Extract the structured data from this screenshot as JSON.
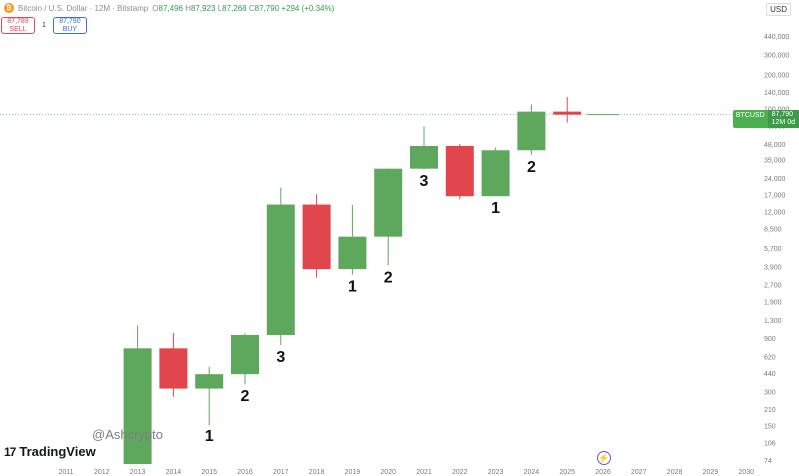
{
  "header": {
    "coin_icon": "bitcoin-icon",
    "title": "Bitcoin / U.S. Dollar · 12M · Bitstamp",
    "open": "87,496",
    "high": "87,923",
    "low": "87,268",
    "close": "87,790",
    "change": "+294 (+0.34%)"
  },
  "trade": {
    "sell_price": "87,789",
    "sell_label": "SELL",
    "spread": "1",
    "buy_price": "87,790",
    "buy_label": "BUY"
  },
  "currency": "USD",
  "price_badge": {
    "symbol": "BTCUSD",
    "price": "87,790",
    "interval": "12M 0d"
  },
  "branding": {
    "logo": "TradingView",
    "handle": "@Ashcrypto"
  },
  "icons": {
    "reset": "reset-chart-icon"
  },
  "colors": {
    "up": "#5ea85e",
    "down": "#e0464c",
    "badge": "#4caf50"
  },
  "chart_data": {
    "type": "candlestick",
    "title": "",
    "y_scale": "log",
    "yticks": [
      "74",
      "106",
      "150",
      "210",
      "300",
      "440",
      "620",
      "900",
      "1,300",
      "1,900",
      "2,700",
      "3,900",
      "5,700",
      "8,500",
      "12,000",
      "17,000",
      "24,000",
      "35,000",
      "48,000",
      "70,000",
      "100,000",
      "140,000",
      "200,000",
      "300,000",
      "440,000"
    ],
    "xticks": [
      "2011",
      "2012",
      "2013",
      "2014",
      "2015",
      "2016",
      "2017",
      "2018",
      "2019",
      "2020",
      "2021",
      "2022",
      "2023",
      "2024",
      "2025",
      "2026",
      "2027",
      "2028",
      "2029",
      "2030"
    ],
    "candles": [
      {
        "year": "2013",
        "open": 13,
        "high": 1165,
        "low": 13,
        "close": 730
      },
      {
        "year": "2014",
        "open": 730,
        "high": 1000,
        "low": 270,
        "close": 320
      },
      {
        "year": "2015",
        "open": 320,
        "high": 500,
        "low": 150,
        "close": 430
      },
      {
        "year": "2016",
        "open": 430,
        "high": 990,
        "low": 350,
        "close": 960
      },
      {
        "year": "2017",
        "open": 960,
        "high": 19700,
        "low": 780,
        "close": 13900
      },
      {
        "year": "2018",
        "open": 13900,
        "high": 17200,
        "low": 3100,
        "close": 3700
      },
      {
        "year": "2019",
        "open": 3700,
        "high": 13800,
        "low": 3300,
        "close": 7200
      },
      {
        "year": "2020",
        "open": 7200,
        "high": 29000,
        "low": 4000,
        "close": 29000
      },
      {
        "year": "2021",
        "open": 29000,
        "high": 69000,
        "low": 28800,
        "close": 46200
      },
      {
        "year": "2022",
        "open": 46200,
        "high": 48200,
        "low": 15500,
        "close": 16500
      },
      {
        "year": "2023",
        "open": 16500,
        "high": 44700,
        "low": 16500,
        "close": 42300
      },
      {
        "year": "2024",
        "open": 42300,
        "high": 108300,
        "low": 38500,
        "close": 93400
      },
      {
        "year": "2025",
        "open": 93400,
        "high": 126200,
        "low": 74500,
        "close": 87790
      }
    ],
    "annotations": [
      {
        "year": "2015",
        "label": "1"
      },
      {
        "year": "2016",
        "label": "2"
      },
      {
        "year": "2017",
        "label": "3"
      },
      {
        "year": "2019",
        "label": "1"
      },
      {
        "year": "2020",
        "label": "2"
      },
      {
        "year": "2021",
        "label": "3"
      },
      {
        "year": "2023",
        "label": "1"
      },
      {
        "year": "2024",
        "label": "2"
      }
    ],
    "current_price": 87790
  }
}
